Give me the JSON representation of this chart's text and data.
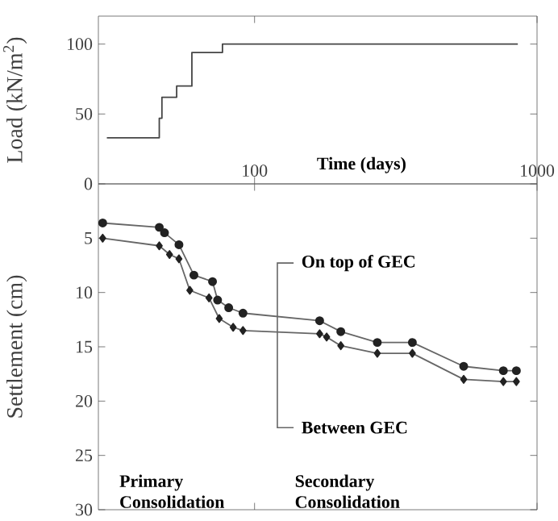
{
  "chart_data": [
    {
      "type": "step",
      "ylabel": "Load (kN/m$^{2}$)",
      "xlabel": "Time (days)",
      "x": [
        30,
        46,
        47,
        53,
        60,
        77,
        855
      ],
      "values": [
        33,
        47,
        62,
        70,
        94,
        100,
        100
      ],
      "color": "#444444",
      "log": "x",
      "xlim": [
        28,
        1000
      ],
      "ylim": [
        0,
        120
      ],
      "xticks": [
        100,
        1000
      ],
      "yticks": [
        0,
        50,
        100
      ],
      "marker": "none"
    },
    {
      "type": "line",
      "ylabel": "Settlement (cm)",
      "log": "x",
      "xlim": [
        28,
        1000
      ],
      "ylim": [
        30,
        0
      ],
      "xticks": [
        100,
        1000
      ],
      "yticks": [
        5,
        10,
        15,
        20,
        25,
        30
      ],
      "tick_labels": "y",
      "series": [
        {
          "name": "On top of GEC",
          "color": "#222222",
          "marker": "circle",
          "x": [
            29,
            46,
            48,
            54,
            61,
            71,
            74,
            81,
            91,
            170,
            202,
            272,
            362,
            550,
            760,
            845
          ],
          "values": [
            3.6,
            4.0,
            4.5,
            5.6,
            8.4,
            9.0,
            10.7,
            11.4,
            11.9,
            12.6,
            13.6,
            14.6,
            14.6,
            16.8,
            17.2,
            17.2
          ]
        },
        {
          "name": "Between GEC",
          "color": "#222222",
          "marker": "diamond",
          "x": [
            29,
            46,
            50,
            54,
            59,
            69,
            75,
            84,
            91,
            170,
            180,
            202,
            272,
            362,
            550,
            760,
            845
          ],
          "values": [
            5.0,
            5.7,
            6.5,
            6.9,
            9.8,
            10.5,
            12.4,
            13.2,
            13.5,
            13.8,
            14.1,
            14.9,
            15.6,
            15.6,
            18.0,
            18.2,
            18.2
          ]
        }
      ],
      "annotations": [
        "Primary Consolidation",
        "Secondary Consolidation"
      ]
    }
  ]
}
